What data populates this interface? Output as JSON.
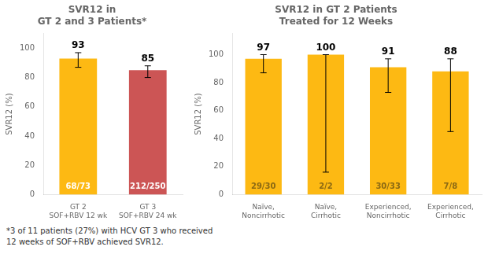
{
  "chart_data": [
    {
      "type": "bar",
      "title": "SVR12 in\nGT 2 and 3 Patients*",
      "y_label": "SVR12 (%)",
      "categories": [
        "GT 2\nSOF+RBV 12 wk",
        "GT 3\nSOF+RBV 24 wk"
      ],
      "values": [
        93,
        85
      ],
      "error_upper": [
        4,
        3
      ],
      "error_lower": [
        6,
        5
      ],
      "colors": [
        "#FDB913",
        "#CC5555"
      ],
      "annotations": [
        "68/73",
        "212/250"
      ],
      "annotation_colors": [
        "white",
        "white"
      ],
      "data_labels": true,
      "ylim": [
        0,
        110
      ],
      "yticks": [
        0,
        20,
        40,
        60,
        80,
        100
      ],
      "grid": false,
      "footnote": "*3 of 11 patients (27%) with HCV GT 3 who received\n12 weeks of SOF+RBV achieved SVR12."
    },
    {
      "type": "bar",
      "title": "SVR12 in GT 2 Patients\nTreated for 12 Weeks",
      "y_label": "SVR12 (%)",
      "categories": [
        "Naïve,\nNoncirrhotic",
        "Naïve,\nCirrhotic",
        "Experienced,\nNoncirrhotic",
        "Experienced,\nCirrhotic"
      ],
      "values": [
        97,
        100,
        91,
        88
      ],
      "error_upper": [
        3,
        0,
        6,
        9
      ],
      "error_lower": [
        10,
        84,
        18,
        43
      ],
      "colors": [
        "#FDB913",
        "#FDB913",
        "#FDB913",
        "#FDB913"
      ],
      "annotations": [
        "29/30",
        "2/2",
        "30/33",
        "7/8"
      ],
      "annotation_colors": [
        "#8B6914",
        "#8B6914",
        "#8B6914",
        "#8B6914"
      ],
      "data_labels": true,
      "ylim": [
        0,
        115
      ],
      "yticks": [
        0,
        20,
        40,
        60,
        80,
        100
      ],
      "grid": false
    }
  ]
}
